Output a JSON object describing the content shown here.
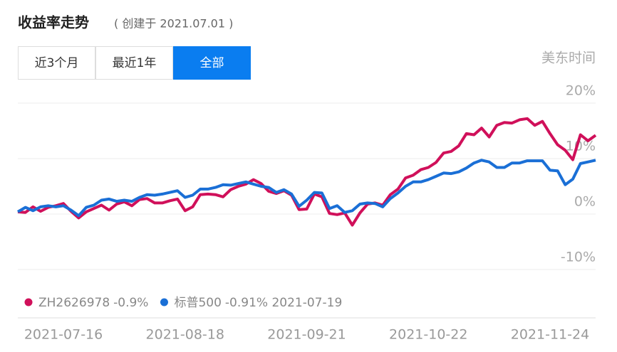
{
  "header": {
    "title": "收益率走势",
    "subtitle": "( 创建于 2021.07.01 )",
    "timezone": "美东时间"
  },
  "buttons": [
    {
      "label": "近3个月",
      "active": false
    },
    {
      "label": "最近1年",
      "active": false
    },
    {
      "label": "全部",
      "active": true
    }
  ],
  "chart_data": {
    "type": "line",
    "categories": [
      null,
      null,
      null,
      null,
      null,
      null,
      "2021-07-16",
      null,
      null,
      null,
      null,
      null,
      null,
      null,
      null,
      null,
      null,
      null,
      null,
      null,
      null,
      null,
      "2021-08-18",
      null,
      null,
      null,
      null,
      null,
      null,
      null,
      null,
      null,
      null,
      null,
      null,
      null,
      null,
      null,
      "2021-09-21",
      null,
      null,
      null,
      null,
      null,
      null,
      null,
      null,
      null,
      null,
      null,
      null,
      null,
      null,
      null,
      "2021-10-22",
      null,
      null,
      null,
      null,
      null,
      null,
      null,
      null,
      null,
      null,
      null,
      null,
      null,
      null,
      null,
      "2021-11-24",
      null,
      null,
      null,
      null,
      null,
      null
    ],
    "series": [
      {
        "name": "ZH2626978",
        "legend_info": "-0.9%",
        "color": "#d0105a",
        "values": [
          0.4,
          0.3,
          1.3,
          0.5,
          1.2,
          1.5,
          1.9,
          0.5,
          -0.7,
          0.4,
          1.0,
          1.6,
          0.7,
          1.8,
          2.2,
          1.5,
          2.6,
          2.8,
          2.0,
          2.0,
          2.4,
          2.7,
          0.6,
          1.3,
          3.5,
          3.6,
          3.5,
          3.1,
          4.4,
          5.0,
          5.4,
          6.2,
          5.5,
          4.1,
          3.7,
          4.2,
          3.4,
          0.8,
          0.9,
          3.6,
          3.1,
          0.1,
          -0.1,
          0.2,
          -2.0,
          0.2,
          1.8,
          2.0,
          1.6,
          3.5,
          4.5,
          6.5,
          7.0,
          8.0,
          8.4,
          9.3,
          11.0,
          11.3,
          12.3,
          14.5,
          14.3,
          15.5,
          13.9,
          16.0,
          16.5,
          16.4,
          17.0,
          17.2,
          16.0,
          16.7,
          14.5,
          12.5,
          11.5,
          9.8,
          14.3,
          13.2,
          14.2
        ]
      },
      {
        "name": "标普500",
        "legend_info": "-0.91% 2021-07-19",
        "color": "#1a6fd6",
        "values": [
          0.4,
          1.2,
          0.6,
          1.3,
          1.5,
          1.3,
          1.5,
          0.7,
          -0.3,
          1.2,
          1.6,
          2.5,
          2.7,
          2.3,
          2.5,
          2.3,
          3.0,
          3.5,
          3.4,
          3.6,
          3.9,
          4.2,
          3.0,
          3.4,
          4.5,
          4.5,
          4.8,
          5.3,
          5.2,
          5.5,
          5.8,
          5.4,
          5.0,
          4.8,
          3.9,
          4.4,
          3.6,
          1.4,
          2.5,
          3.9,
          3.8,
          1.0,
          1.5,
          0.3,
          0.6,
          1.8,
          2.0,
          1.9,
          1.3,
          2.8,
          3.8,
          5.0,
          5.8,
          5.8,
          6.2,
          6.8,
          7.4,
          7.3,
          7.6,
          8.3,
          9.2,
          9.7,
          9.4,
          8.4,
          8.4,
          9.2,
          9.2,
          9.6,
          9.6,
          9.6,
          7.9,
          7.8,
          5.3,
          6.3,
          9.1,
          9.4,
          9.7
        ]
      }
    ],
    "ylim": [
      -10,
      20
    ],
    "yticks": [
      {
        "value": -10,
        "label": "-10%"
      },
      {
        "value": 0,
        "label": "0%"
      },
      {
        "value": 10,
        "label": "10%"
      },
      {
        "value": 20,
        "label": "20%"
      }
    ],
    "grid": true
  }
}
